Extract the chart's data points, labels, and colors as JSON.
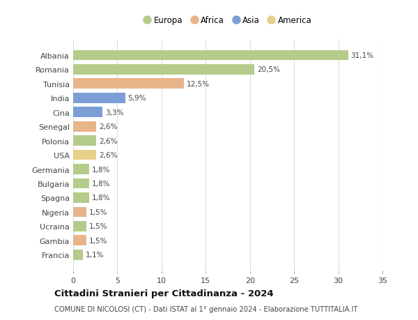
{
  "countries": [
    "Albania",
    "Romania",
    "Tunisia",
    "India",
    "Cina",
    "Senegal",
    "Polonia",
    "USA",
    "Germania",
    "Bulgaria",
    "Spagna",
    "Nigeria",
    "Ucraina",
    "Gambia",
    "Francia"
  ],
  "values": [
    31.1,
    20.5,
    12.5,
    5.9,
    3.3,
    2.6,
    2.6,
    2.6,
    1.8,
    1.8,
    1.8,
    1.5,
    1.5,
    1.5,
    1.1
  ],
  "labels": [
    "31,1%",
    "20,5%",
    "12,5%",
    "5,9%",
    "3,3%",
    "2,6%",
    "2,6%",
    "2,6%",
    "1,8%",
    "1,8%",
    "1,8%",
    "1,5%",
    "1,5%",
    "1,5%",
    "1,1%"
  ],
  "continents": [
    "Europa",
    "Europa",
    "Africa",
    "Asia",
    "Asia",
    "Africa",
    "Europa",
    "America",
    "Europa",
    "Europa",
    "Europa",
    "Africa",
    "Europa",
    "Africa",
    "Europa"
  ],
  "colors": {
    "Europa": "#b5cb8b",
    "Africa": "#e8b48a",
    "Asia": "#7b9fd4",
    "America": "#e8d08a"
  },
  "title": "Cittadini Stranieri per Cittadinanza - 2024",
  "subtitle": "COMUNE DI NICOLOSI (CT) - Dati ISTAT al 1° gennaio 2024 - Elaborazione TUTTITALIA.IT",
  "xlim": [
    0,
    35
  ],
  "xticks": [
    0,
    5,
    10,
    15,
    20,
    25,
    30,
    35
  ],
  "background_color": "#ffffff",
  "bar_height": 0.72,
  "grid_color": "#dddddd",
  "legend_order": [
    "Europa",
    "Africa",
    "Asia",
    "America"
  ]
}
